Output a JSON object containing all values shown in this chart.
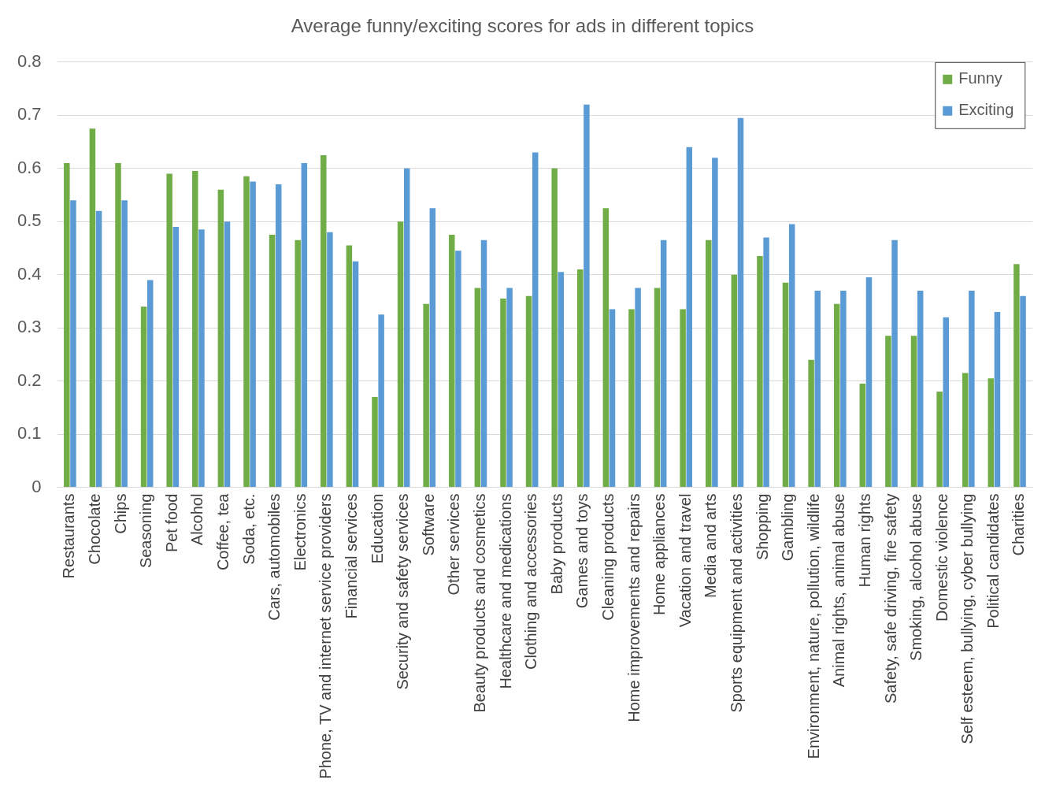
{
  "chart_data": {
    "type": "bar",
    "title": "Average funny/exciting scores for ads in different topics",
    "categories": [
      "Restaurants",
      "Chocolate",
      "Chips",
      "Seasoning",
      "Pet food",
      "Alcohol",
      "Coffee, tea",
      "Soda, etc.",
      "Cars, automobiles",
      "Electronics",
      "Phone, TV and internet service providers",
      "Financial services",
      "Education",
      "Security and safety services",
      "Software",
      "Other services",
      "Beauty products and cosmetics",
      "Healthcare and medications",
      "Clothing and accessories",
      "Baby products",
      "Games and toys",
      "Cleaning products",
      "Home improvements and repairs",
      "Home appliances",
      "Vacation and travel",
      "Media and arts",
      "Sports equipment and activities",
      "Shopping",
      "Gambling",
      "Environment, nature, pollution, wildlife",
      "Animal rights, animal abuse",
      "Human rights",
      "Safety, safe driving, fire safety",
      "Smoking, alcohol abuse",
      "Domestic violence",
      "Self esteem, bullying, cyber bullying",
      "Political candidates",
      "Charities"
    ],
    "series": [
      {
        "name": "Funny",
        "color": "#70ad47",
        "values": [
          0.61,
          0.675,
          0.61,
          0.34,
          0.59,
          0.595,
          0.56,
          0.585,
          0.475,
          0.465,
          0.625,
          0.455,
          0.17,
          0.5,
          0.345,
          0.475,
          0.375,
          0.355,
          0.36,
          0.6,
          0.41,
          0.525,
          0.335,
          0.375,
          0.335,
          0.465,
          0.4,
          0.435,
          0.385,
          0.24,
          0.345,
          0.195,
          0.285,
          0.285,
          0.18,
          0.215,
          0.205,
          0.42
        ]
      },
      {
        "name": "Exciting",
        "color": "#5b9bd5",
        "values": [
          0.54,
          0.52,
          0.54,
          0.39,
          0.49,
          0.485,
          0.5,
          0.575,
          0.57,
          0.61,
          0.48,
          0.425,
          0.325,
          0.6,
          0.525,
          0.445,
          0.465,
          0.375,
          0.63,
          0.405,
          0.72,
          0.335,
          0.375,
          0.465,
          0.64,
          0.62,
          0.695,
          0.47,
          0.495,
          0.37,
          0.37,
          0.395,
          0.465,
          0.37,
          0.32,
          0.37,
          0.33,
          0.36
        ]
      }
    ],
    "ylim": [
      0,
      0.8
    ],
    "yticks": [
      0,
      0.1,
      0.2,
      0.3,
      0.4,
      0.5,
      0.6,
      0.7,
      0.8
    ],
    "grid": "y",
    "legend": "top right"
  }
}
